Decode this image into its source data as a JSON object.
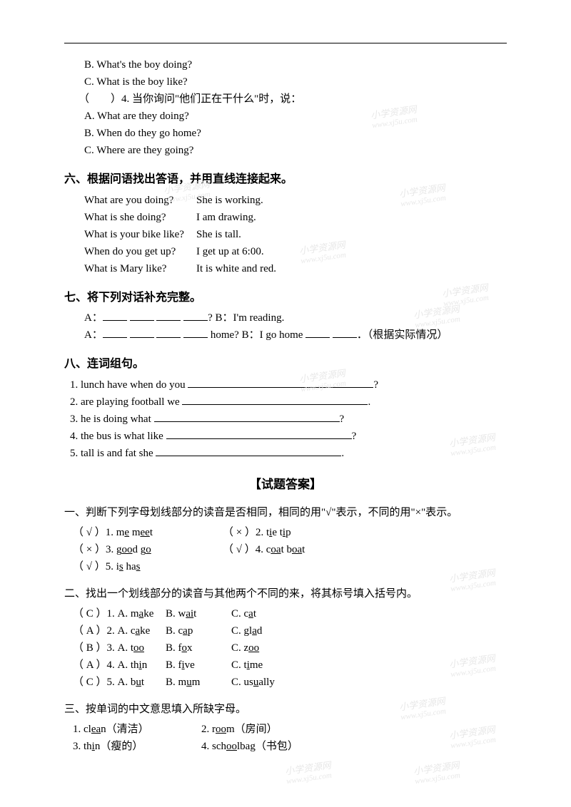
{
  "options_prev": {
    "b": "B. What's the boy doing?",
    "c": "C. What is the boy like?"
  },
  "q4": {
    "stem": "（　　）4. 当你询问\"他们正在干什么\"时，说：",
    "a": "A. What are they doing?",
    "b": "B. When do they go home?",
    "c": "C. Where are they going?"
  },
  "sec6": {
    "title": "六、根据问语找出答语，并用直线连接起来。",
    "rows": [
      {
        "l": "What are you doing?",
        "r": "She is working."
      },
      {
        "l": "What is she doing?",
        "r": "I am drawing."
      },
      {
        "l": "What is your bike like?",
        "r": "She is tall."
      },
      {
        "l": "When do you get up?",
        "r": "I get up at 6:00."
      },
      {
        "l": "What is Mary like?",
        "r": "It is white and red."
      }
    ]
  },
  "sec7": {
    "title": "七、将下列对话补充完整。",
    "line1_a": "A：",
    "line1_b": "? B：I'm reading.",
    "line2_a": "A：",
    "line2_b": " home? B：I go home ",
    "line2_c": "．（根据实际情况）"
  },
  "sec8": {
    "title": "八、连词组句。",
    "items": [
      {
        "t": "1. lunch have when do you ",
        "end": "?"
      },
      {
        "t": "2. are playing football we ",
        "end": "."
      },
      {
        "t": "3. he is doing what ",
        "end": "?"
      },
      {
        "t": "4. the bus is what like ",
        "end": "?"
      },
      {
        "t": "5. tall is and fat she ",
        "end": "."
      }
    ]
  },
  "answers_title": "【试题答案】",
  "ans1": {
    "title": "一、判断下列字母划线部分的读音是否相同，相同的用\"√\"表示，不同的用\"×\"表示。",
    "rows": [
      {
        "l_mark": "（ √ ）1. m",
        "l_u": "e",
        "l_rest": " m",
        "l_u2": "ee",
        "l_rest2": "t",
        "r_mark": "（ × ）2. t",
        "r_u": "i",
        "r_rest": "e t",
        "r_u2": "i",
        "r_rest2": "p"
      },
      {
        "l_mark": "（ × ）3. g",
        "l_u": "oo",
        "l_rest": "d g",
        "l_u2": "o",
        "l_rest2": "",
        "r_mark": "（ √ ）4. c",
        "r_u": "oa",
        "r_rest": "t b",
        "r_u2": "oa",
        "r_rest2": "t"
      },
      {
        "l_mark": "（ √ ）5. i",
        "l_u": "s",
        "l_rest": " ha",
        "l_u2": "s",
        "l_rest2": "",
        "r_mark": "",
        "r_u": "",
        "r_rest": "",
        "r_u2": "",
        "r_rest2": ""
      }
    ]
  },
  "ans2": {
    "title": "二、找出一个划线部分的读音与其他两个不同的来，将其标号填入括号内。",
    "rows": [
      {
        "n": "（ C ）1. A. m",
        "nu": "a",
        "nr": "ke",
        "b": "B. w",
        "bu": "ai",
        "br": "t",
        "c": "C. c",
        "cu": "a",
        "cr": "t"
      },
      {
        "n": "（ A ）2. A. c",
        "nu": "a",
        "nr": "ke",
        "b": "B. c",
        "bu": "a",
        "br": "p",
        "c": "C. gl",
        "cu": "a",
        "cr": "d"
      },
      {
        "n": "（ B ）3. A. t",
        "nu": "oo",
        "nr": "",
        "b": "B. f",
        "bu": "o",
        "br": "x",
        "c": "C. z",
        "cu": "oo",
        "cr": ""
      },
      {
        "n": "（ A ）4. A. th",
        "nu": "i",
        "nr": "n",
        "b": "B. f",
        "bu": "i",
        "br": "ve",
        "c": "C. t",
        "cu": "i",
        "cr": "me"
      },
      {
        "n": "（ C ）5. A. b",
        "nu": "u",
        "nr": "t",
        "b": "B. m",
        "bu": "u",
        "br": "m",
        "c": "C. us",
        "cu": "u",
        "cr": "ally"
      }
    ]
  },
  "ans3": {
    "title": "三、按单词的中文意思填入所缺字母。",
    "rows": [
      {
        "l": "1. cl",
        "lu": "ea",
        "lr": "n（清洁）",
        "r": "2. r",
        "ru": "oo",
        "rr": "m（房间）"
      },
      {
        "l": "3. th",
        "lu": "i",
        "lr": "n（瘦的）",
        "r": "4. sch",
        "ru": "oo",
        "rr": "lbag（书包）"
      }
    ]
  },
  "watermark": {
    "line1": "小学资源网",
    "line2": "www.xj5u.com"
  }
}
